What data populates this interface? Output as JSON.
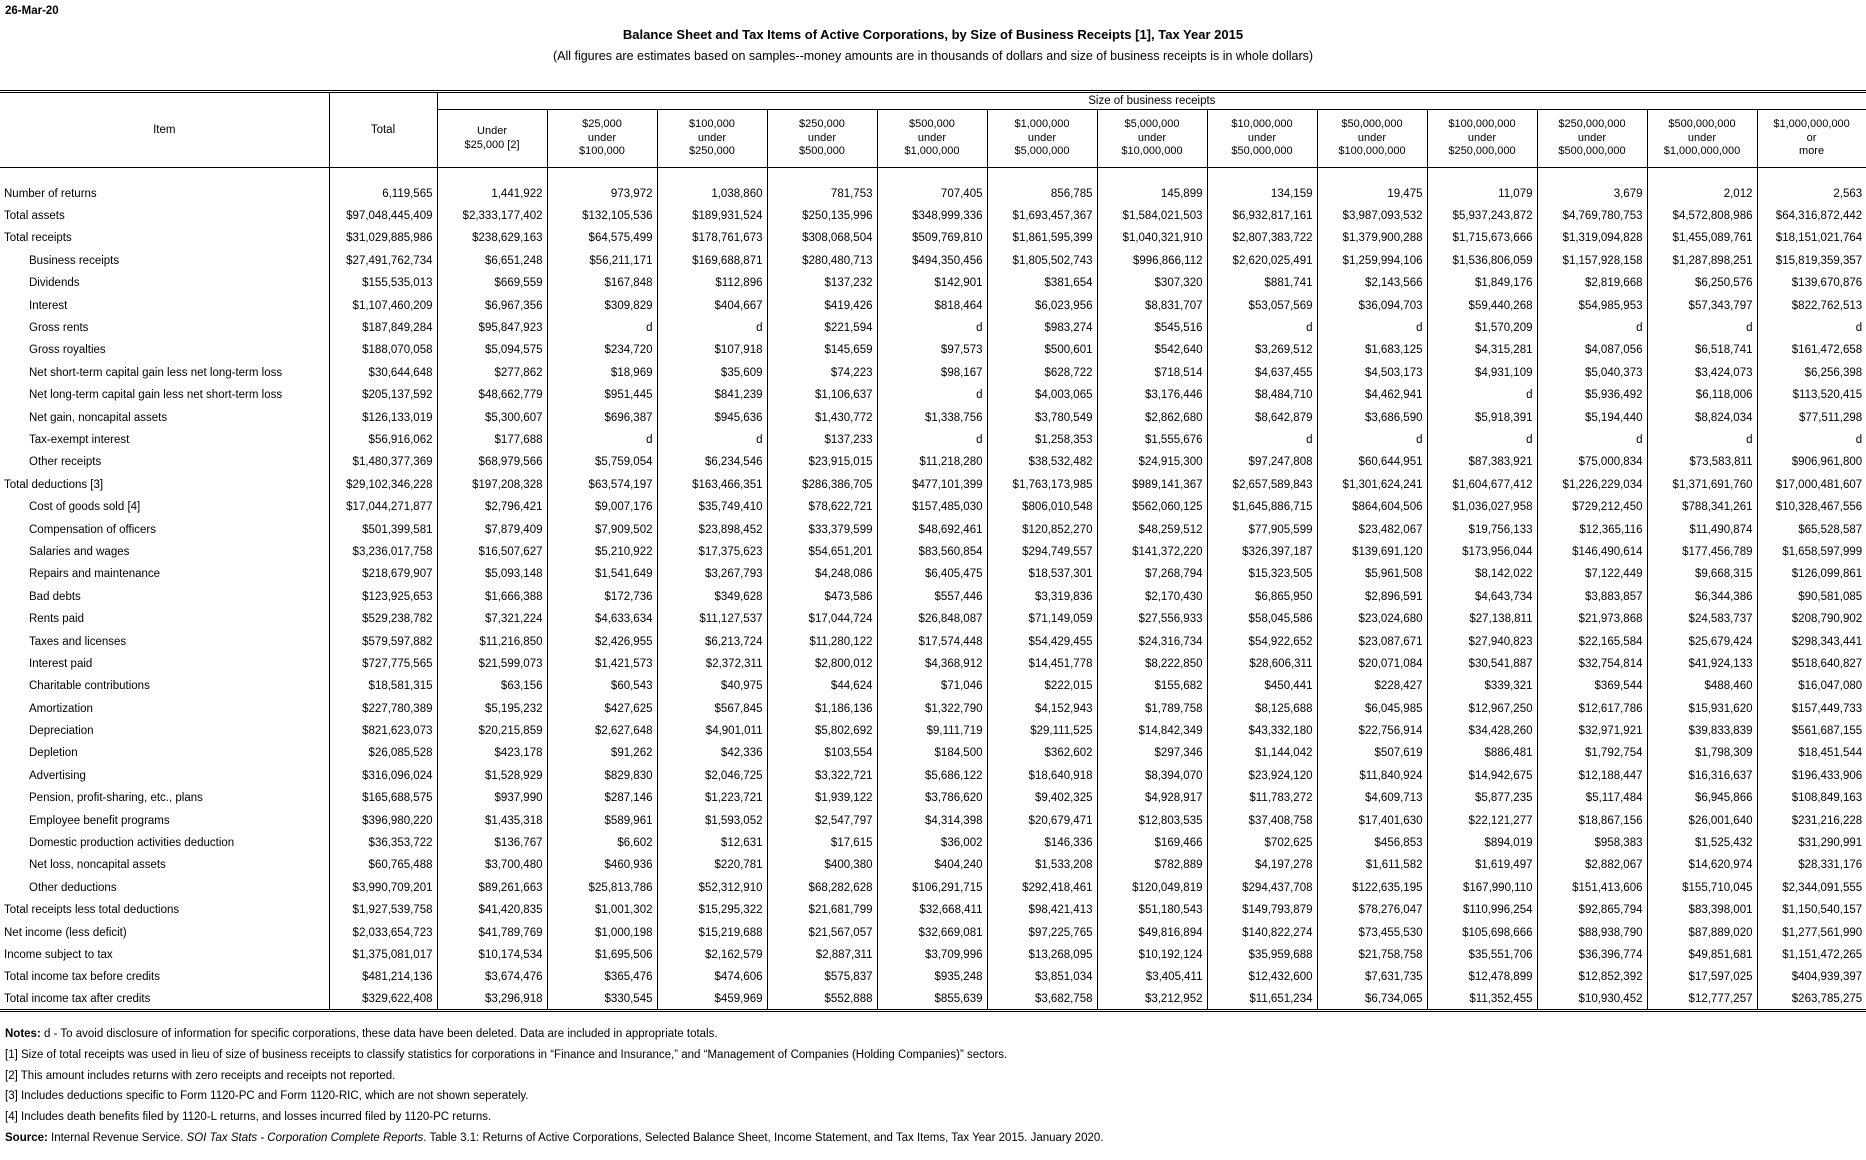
{
  "page": {
    "date": "26-Mar-20",
    "title": "Balance Sheet and Tax Items of Active Corporations, by Size of Business Receipts [1], Tax Year 2015",
    "subtitle": "(All figures are estimates based on samples--money amounts are in thousands of dollars and size of business receipts is in whole dollars)"
  },
  "table": {
    "item_header": "Item",
    "total_header": "Total",
    "group_header": "Size of business receipts",
    "size_columns": [
      [
        "Under",
        "$25,000 [2]"
      ],
      [
        "$25,000",
        "under",
        "$100,000"
      ],
      [
        "$100,000",
        "under",
        "$250,000"
      ],
      [
        "$250,000",
        "under",
        "$500,000"
      ],
      [
        "$500,000",
        "under",
        "$1,000,000"
      ],
      [
        "$1,000,000",
        "under",
        "$5,000,000"
      ],
      [
        "$5,000,000",
        "under",
        "$10,000,000"
      ],
      [
        "$10,000,000",
        "under",
        "$50,000,000"
      ],
      [
        "$50,000,000",
        "under",
        "$100,000,000"
      ],
      [
        "$100,000,000",
        "under",
        "$250,000,000"
      ],
      [
        "$250,000,000",
        "under",
        "$500,000,000"
      ],
      [
        "$500,000,000",
        "under",
        "$1,000,000,000"
      ],
      [
        "$1,000,000,000",
        "or",
        "more"
      ]
    ],
    "rows": [
      {
        "label": "Number of returns",
        "indent": 0,
        "values": [
          "6,119,565",
          "1,441,922",
          "973,972",
          "1,038,860",
          "781,753",
          "707,405",
          "856,785",
          "145,899",
          "134,159",
          "19,475",
          "11,079",
          "3,679",
          "2,012",
          "2,563"
        ]
      },
      {
        "label": "Total assets",
        "indent": 0,
        "values": [
          "$97,048,445,409",
          "$2,333,177,402",
          "$132,105,536",
          "$189,931,524",
          "$250,135,996",
          "$348,999,336",
          "$1,693,457,367",
          "$1,584,021,503",
          "$6,932,817,161",
          "$3,987,093,532",
          "$5,937,243,872",
          "$4,769,780,753",
          "$4,572,808,986",
          "$64,316,872,442"
        ]
      },
      {
        "label": "Total receipts",
        "indent": 0,
        "values": [
          "$31,029,885,986",
          "$238,629,163",
          "$64,575,499",
          "$178,761,673",
          "$308,068,504",
          "$509,769,810",
          "$1,861,595,399",
          "$1,040,321,910",
          "$2,807,383,722",
          "$1,379,900,288",
          "$1,715,673,666",
          "$1,319,094,828",
          "$1,455,089,761",
          "$18,151,021,764"
        ]
      },
      {
        "label": "Business receipts",
        "indent": 1,
        "values": [
          "$27,491,762,734",
          "$6,651,248",
          "$56,211,171",
          "$169,688,871",
          "$280,480,713",
          "$494,350,456",
          "$1,805,502,743",
          "$996,866,112",
          "$2,620,025,491",
          "$1,259,994,106",
          "$1,536,806,059",
          "$1,157,928,158",
          "$1,287,898,251",
          "$15,819,359,357"
        ]
      },
      {
        "label": "Dividends",
        "indent": 1,
        "values": [
          "$155,535,013",
          "$669,559",
          "$167,848",
          "$112,896",
          "$137,232",
          "$142,901",
          "$381,654",
          "$307,320",
          "$881,741",
          "$2,143,566",
          "$1,849,176",
          "$2,819,668",
          "$6,250,576",
          "$139,670,876"
        ]
      },
      {
        "label": "Interest",
        "indent": 1,
        "values": [
          "$1,107,460,209",
          "$6,967,356",
          "$309,829",
          "$404,667",
          "$419,426",
          "$818,464",
          "$6,023,956",
          "$8,831,707",
          "$53,057,569",
          "$36,094,703",
          "$59,440,268",
          "$54,985,953",
          "$57,343,797",
          "$822,762,513"
        ]
      },
      {
        "label": "Gross rents",
        "indent": 1,
        "values": [
          "$187,849,284",
          "$95,847,923",
          "d",
          "d",
          "$221,594",
          "d",
          "$983,274",
          "$545,516",
          "d",
          "d",
          "$1,570,209",
          "d",
          "d",
          "d"
        ]
      },
      {
        "label": "Gross royalties",
        "indent": 1,
        "values": [
          "$188,070,058",
          "$5,094,575",
          "$234,720",
          "$107,918",
          "$145,659",
          "$97,573",
          "$500,601",
          "$542,640",
          "$3,269,512",
          "$1,683,125",
          "$4,315,281",
          "$4,087,056",
          "$6,518,741",
          "$161,472,658"
        ]
      },
      {
        "label": "Net short-term capital gain less net long-term loss",
        "indent": 1,
        "values": [
          "$30,644,648",
          "$277,862",
          "$18,969",
          "$35,609",
          "$74,223",
          "$98,167",
          "$628,722",
          "$718,514",
          "$4,637,455",
          "$4,503,173",
          "$4,931,109",
          "$5,040,373",
          "$3,424,073",
          "$6,256,398"
        ]
      },
      {
        "label": "Net long-term capital gain less net short-term loss",
        "indent": 1,
        "values": [
          "$205,137,592",
          "$48,662,779",
          "$951,445",
          "$841,239",
          "$1,106,637",
          "d",
          "$4,003,065",
          "$3,176,446",
          "$8,484,710",
          "$4,462,941",
          "d",
          "$5,936,492",
          "$6,118,006",
          "$113,520,415"
        ]
      },
      {
        "label": "Net gain, noncapital assets",
        "indent": 1,
        "values": [
          "$126,133,019",
          "$5,300,607",
          "$696,387",
          "$945,636",
          "$1,430,772",
          "$1,338,756",
          "$3,780,549",
          "$2,862,680",
          "$8,642,879",
          "$3,686,590",
          "$5,918,391",
          "$5,194,440",
          "$8,824,034",
          "$77,511,298"
        ]
      },
      {
        "label": "Tax-exempt interest",
        "indent": 1,
        "values": [
          "$56,916,062",
          "$177,688",
          "d",
          "d",
          "$137,233",
          "d",
          "$1,258,353",
          "$1,555,676",
          "d",
          "d",
          "d",
          "d",
          "d",
          "d"
        ]
      },
      {
        "label": "Other receipts",
        "indent": 1,
        "values": [
          "$1,480,377,369",
          "$68,979,566",
          "$5,759,054",
          "$6,234,546",
          "$23,915,015",
          "$11,218,280",
          "$38,532,482",
          "$24,915,300",
          "$97,247,808",
          "$60,644,951",
          "$87,383,921",
          "$75,000,834",
          "$73,583,811",
          "$906,961,800"
        ]
      },
      {
        "label": "Total deductions [3]",
        "indent": 0,
        "values": [
          "$29,102,346,228",
          "$197,208,328",
          "$63,574,197",
          "$163,466,351",
          "$286,386,705",
          "$477,101,399",
          "$1,763,173,985",
          "$989,141,367",
          "$2,657,589,843",
          "$1,301,624,241",
          "$1,604,677,412",
          "$1,226,229,034",
          "$1,371,691,760",
          "$17,000,481,607"
        ]
      },
      {
        "label": "Cost of goods sold [4]",
        "indent": 1,
        "values": [
          "$17,044,271,877",
          "$2,796,421",
          "$9,007,176",
          "$35,749,410",
          "$78,622,721",
          "$157,485,030",
          "$806,010,548",
          "$562,060,125",
          "$1,645,886,715",
          "$864,604,506",
          "$1,036,027,958",
          "$729,212,450",
          "$788,341,261",
          "$10,328,467,556"
        ]
      },
      {
        "label": "Compensation of officers",
        "indent": 1,
        "values": [
          "$501,399,581",
          "$7,879,409",
          "$7,909,502",
          "$23,898,452",
          "$33,379,599",
          "$48,692,461",
          "$120,852,270",
          "$48,259,512",
          "$77,905,599",
          "$23,482,067",
          "$19,756,133",
          "$12,365,116",
          "$11,490,874",
          "$65,528,587"
        ]
      },
      {
        "label": "Salaries and wages",
        "indent": 1,
        "values": [
          "$3,236,017,758",
          "$16,507,627",
          "$5,210,922",
          "$17,375,623",
          "$54,651,201",
          "$83,560,854",
          "$294,749,557",
          "$141,372,220",
          "$326,397,187",
          "$139,691,120",
          "$173,956,044",
          "$146,490,614",
          "$177,456,789",
          "$1,658,597,999"
        ]
      },
      {
        "label": "Repairs and maintenance",
        "indent": 1,
        "values": [
          "$218,679,907",
          "$5,093,148",
          "$1,541,649",
          "$3,267,793",
          "$4,248,086",
          "$6,405,475",
          "$18,537,301",
          "$7,268,794",
          "$15,323,505",
          "$5,961,508",
          "$8,142,022",
          "$7,122,449",
          "$9,668,315",
          "$126,099,861"
        ]
      },
      {
        "label": "Bad debts",
        "indent": 1,
        "values": [
          "$123,925,653",
          "$1,666,388",
          "$172,736",
          "$349,628",
          "$473,586",
          "$557,446",
          "$3,319,836",
          "$2,170,430",
          "$6,865,950",
          "$2,896,591",
          "$4,643,734",
          "$3,883,857",
          "$6,344,386",
          "$90,581,085"
        ]
      },
      {
        "label": "Rents paid",
        "indent": 1,
        "values": [
          "$529,238,782",
          "$7,321,224",
          "$4,633,634",
          "$11,127,537",
          "$17,044,724",
          "$26,848,087",
          "$71,149,059",
          "$27,556,933",
          "$58,045,586",
          "$23,024,680",
          "$27,138,811",
          "$21,973,868",
          "$24,583,737",
          "$208,790,902"
        ]
      },
      {
        "label": "Taxes and licenses",
        "indent": 1,
        "values": [
          "$579,597,882",
          "$11,216,850",
          "$2,426,955",
          "$6,213,724",
          "$11,280,122",
          "$17,574,448",
          "$54,429,455",
          "$24,316,734",
          "$54,922,652",
          "$23,087,671",
          "$27,940,823",
          "$22,165,584",
          "$25,679,424",
          "$298,343,441"
        ]
      },
      {
        "label": "Interest paid",
        "indent": 1,
        "values": [
          "$727,775,565",
          "$21,599,073",
          "$1,421,573",
          "$2,372,311",
          "$2,800,012",
          "$4,368,912",
          "$14,451,778",
          "$8,222,850",
          "$28,606,311",
          "$20,071,084",
          "$30,541,887",
          "$32,754,814",
          "$41,924,133",
          "$518,640,827"
        ]
      },
      {
        "label": "Charitable contributions",
        "indent": 1,
        "values": [
          "$18,581,315",
          "$63,156",
          "$60,543",
          "$40,975",
          "$44,624",
          "$71,046",
          "$222,015",
          "$155,682",
          "$450,441",
          "$228,427",
          "$339,321",
          "$369,544",
          "$488,460",
          "$16,047,080"
        ]
      },
      {
        "label": "Amortization",
        "indent": 1,
        "values": [
          "$227,780,389",
          "$5,195,232",
          "$427,625",
          "$567,845",
          "$1,186,136",
          "$1,322,790",
          "$4,152,943",
          "$1,789,758",
          "$8,125,688",
          "$6,045,985",
          "$12,967,250",
          "$12,617,786",
          "$15,931,620",
          "$157,449,733"
        ]
      },
      {
        "label": "Depreciation",
        "indent": 1,
        "values": [
          "$821,623,073",
          "$20,215,859",
          "$2,627,648",
          "$4,901,011",
          "$5,802,692",
          "$9,111,719",
          "$29,111,525",
          "$14,842,349",
          "$43,332,180",
          "$22,756,914",
          "$34,428,260",
          "$32,971,921",
          "$39,833,839",
          "$561,687,155"
        ]
      },
      {
        "label": "Depletion",
        "indent": 1,
        "values": [
          "$26,085,528",
          "$423,178",
          "$91,262",
          "$42,336",
          "$103,554",
          "$184,500",
          "$362,602",
          "$297,346",
          "$1,144,042",
          "$507,619",
          "$886,481",
          "$1,792,754",
          "$1,798,309",
          "$18,451,544"
        ]
      },
      {
        "label": "Advertising",
        "indent": 1,
        "values": [
          "$316,096,024",
          "$1,528,929",
          "$829,830",
          "$2,046,725",
          "$3,322,721",
          "$5,686,122",
          "$18,640,918",
          "$8,394,070",
          "$23,924,120",
          "$11,840,924",
          "$14,942,675",
          "$12,188,447",
          "$16,316,637",
          "$196,433,906"
        ]
      },
      {
        "label": "Pension, profit-sharing, etc., plans",
        "indent": 1,
        "values": [
          "$165,688,575",
          "$937,990",
          "$287,146",
          "$1,223,721",
          "$1,939,122",
          "$3,786,620",
          "$9,402,325",
          "$4,928,917",
          "$11,783,272",
          "$4,609,713",
          "$5,877,235",
          "$5,117,484",
          "$6,945,866",
          "$108,849,163"
        ]
      },
      {
        "label": "Employee benefit programs",
        "indent": 1,
        "values": [
          "$396,980,220",
          "$1,435,318",
          "$589,961",
          "$1,593,052",
          "$2,547,797",
          "$4,314,398",
          "$20,679,471",
          "$12,803,535",
          "$37,408,758",
          "$17,401,630",
          "$22,121,277",
          "$18,867,156",
          "$26,001,640",
          "$231,216,228"
        ]
      },
      {
        "label": "Domestic production activities deduction",
        "indent": 1,
        "values": [
          "$36,353,722",
          "$136,767",
          "$6,602",
          "$12,631",
          "$17,615",
          "$36,002",
          "$146,336",
          "$169,466",
          "$702,625",
          "$456,853",
          "$894,019",
          "$958,383",
          "$1,525,432",
          "$31,290,991"
        ]
      },
      {
        "label": "Net loss, noncapital assets",
        "indent": 1,
        "values": [
          "$60,765,488",
          "$3,700,480",
          "$460,936",
          "$220,781",
          "$400,380",
          "$404,240",
          "$1,533,208",
          "$782,889",
          "$4,197,278",
          "$1,611,582",
          "$1,619,497",
          "$2,882,067",
          "$14,620,974",
          "$28,331,176"
        ]
      },
      {
        "label": "Other deductions",
        "indent": 1,
        "values": [
          "$3,990,709,201",
          "$89,261,663",
          "$25,813,786",
          "$52,312,910",
          "$68,282,628",
          "$106,291,715",
          "$292,418,461",
          "$120,049,819",
          "$294,437,708",
          "$122,635,195",
          "$167,990,110",
          "$151,413,606",
          "$155,710,045",
          "$2,344,091,555"
        ]
      },
      {
        "label": "Total receipts less total deductions",
        "indent": 0,
        "values": [
          "$1,927,539,758",
          "$41,420,835",
          "$1,001,302",
          "$15,295,322",
          "$21,681,799",
          "$32,668,411",
          "$98,421,413",
          "$51,180,543",
          "$149,793,879",
          "$78,276,047",
          "$110,996,254",
          "$92,865,794",
          "$83,398,001",
          "$1,150,540,157"
        ]
      },
      {
        "label": "Net income (less deficit)",
        "indent": 0,
        "values": [
          "$2,033,654,723",
          "$41,789,769",
          "$1,000,198",
          "$15,219,688",
          "$21,567,057",
          "$32,669,081",
          "$97,225,765",
          "$49,816,894",
          "$140,822,274",
          "$73,455,530",
          "$105,698,666",
          "$88,938,790",
          "$87,889,020",
          "$1,277,561,990"
        ]
      },
      {
        "label": "Income subject to tax",
        "indent": 0,
        "values": [
          "$1,375,081,017",
          "$10,174,534",
          "$1,695,506",
          "$2,162,579",
          "$2,887,311",
          "$3,709,996",
          "$13,268,095",
          "$10,192,124",
          "$35,959,688",
          "$21,758,758",
          "$35,551,706",
          "$36,396,774",
          "$49,851,681",
          "$1,151,472,265"
        ]
      },
      {
        "label": "Total income tax before credits",
        "indent": 0,
        "values": [
          "$481,214,136",
          "$3,674,476",
          "$365,476",
          "$474,606",
          "$575,837",
          "$935,248",
          "$3,851,034",
          "$3,405,411",
          "$12,432,600",
          "$7,631,735",
          "$12,478,899",
          "$12,852,392",
          "$17,597,025",
          "$404,939,397"
        ]
      },
      {
        "label": "Total income tax after credits",
        "indent": 0,
        "values": [
          "$329,622,408",
          "$3,296,918",
          "$330,545",
          "$459,969",
          "$552,888",
          "$855,639",
          "$3,682,758",
          "$3,212,952",
          "$11,651,234",
          "$6,734,065",
          "$11,352,455",
          "$10,930,452",
          "$12,777,257",
          "$263,785,275"
        ]
      }
    ]
  },
  "footer": {
    "lines": [
      [
        {
          "t": "Notes:",
          "b": 1
        },
        {
          "t": " d - To avoid disclosure of information for specific corporations, these data have been deleted.  Data are included in appropriate totals."
        }
      ],
      [
        {
          "t": "[1]  Size of total receipts was used in lieu of size of business receipts to classify statistics for corporations in “Finance and Insurance,” and “Management of Companies (Holding Companies)” sectors."
        }
      ],
      [
        {
          "t": "[2]  This amount includes returns with zero receipts and receipts not reported."
        }
      ],
      [
        {
          "t": "[3]  Includes deductions specific to Form 1120-PC and Form 1120-RIC, which are not shown seperately."
        }
      ],
      [
        {
          "t": "[4]  Includes death benefits filed by 1120-L returns, and losses incurred filed by 1120-PC returns."
        }
      ],
      [
        {
          "t": "Source:",
          "b": 1
        },
        {
          "t": " Internal Revenue Service. "
        },
        {
          "t": "SOI Tax Stats - Corporation Complete Reports",
          "i": 1
        },
        {
          "t": ". Table 3.1: Returns of Active Corporations, Selected Balance Sheet, Income Statement, and Tax Items, Tax Year 2015. January 2020."
        }
      ]
    ]
  }
}
